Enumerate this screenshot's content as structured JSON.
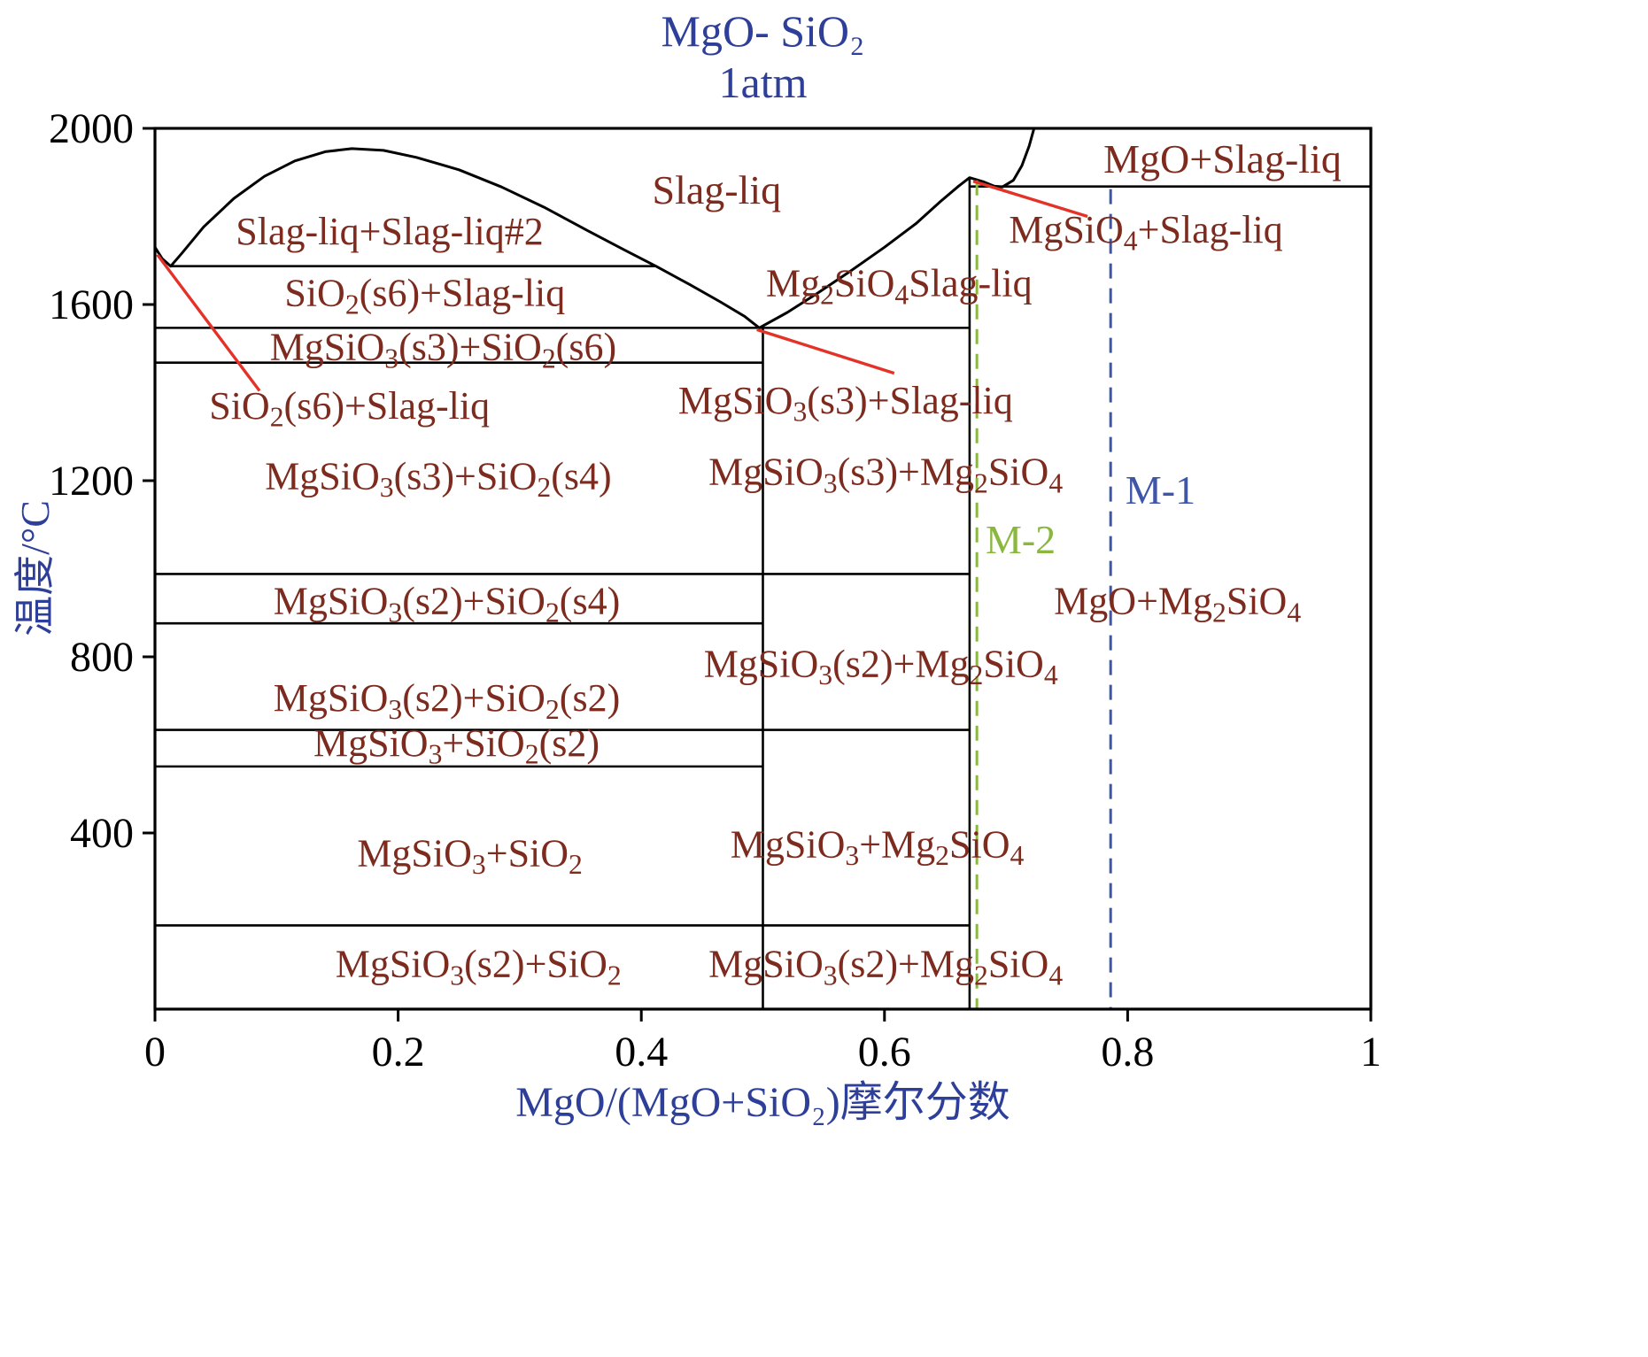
{
  "colors": {
    "background": "#ffffff",
    "frame_black": "#000000",
    "title_blue": "#2e3f99",
    "label_maroon": "#7d2b1e",
    "leader_red": "#e53228",
    "m1_blue": "#3f55a8",
    "m2_green": "#8ab83f"
  },
  "chart_data": {
    "type": "line",
    "title_line1": "MgO- SiO₂",
    "title_line2": "1atm",
    "xlabel": "MgO/(MgO+SiO₂)摩尔分数",
    "ylabel": "温度/°C",
    "xlim": [
      0,
      1
    ],
    "ylim": [
      0,
      2000
    ],
    "grid": false,
    "x_ticks": [
      0,
      0.2,
      0.4,
      0.6,
      0.8,
      1
    ],
    "x_tick_labels": [
      "0",
      "0.2",
      "0.4",
      "0.6",
      "0.8",
      "1"
    ],
    "y_ticks": [
      2000,
      1600,
      1200,
      800,
      400
    ],
    "y_tick_labels": [
      "2000",
      "1600",
      "1200",
      "800",
      "400"
    ],
    "liquidus_curves": [
      {
        "name": "liquidus-left-and-miscibility-dome",
        "points": [
          [
            0.0,
            1730
          ],
          [
            0.006,
            1704
          ],
          [
            0.013,
            1687
          ],
          [
            0.022,
            1716
          ],
          [
            0.04,
            1776
          ],
          [
            0.065,
            1841
          ],
          [
            0.09,
            1891
          ],
          [
            0.115,
            1926
          ],
          [
            0.14,
            1947
          ],
          [
            0.162,
            1954
          ],
          [
            0.188,
            1950
          ],
          [
            0.215,
            1934
          ],
          [
            0.25,
            1906
          ],
          [
            0.285,
            1867
          ],
          [
            0.32,
            1821
          ],
          [
            0.355,
            1769
          ],
          [
            0.386,
            1724
          ],
          [
            0.412,
            1687
          ],
          [
            0.44,
            1645
          ],
          [
            0.465,
            1606
          ],
          [
            0.485,
            1573
          ],
          [
            0.497,
            1547
          ]
        ]
      },
      {
        "name": "liquidus-right",
        "points": [
          [
            0.497,
            1547
          ],
          [
            0.52,
            1582
          ],
          [
            0.545,
            1626
          ],
          [
            0.572,
            1676
          ],
          [
            0.6,
            1730
          ],
          [
            0.626,
            1784
          ],
          [
            0.646,
            1834
          ],
          [
            0.661,
            1869
          ],
          [
            0.67,
            1888
          ],
          [
            0.681,
            1879
          ],
          [
            0.69,
            1869
          ],
          [
            0.697,
            1867
          ],
          [
            0.706,
            1882
          ],
          [
            0.713,
            1915
          ],
          [
            0.719,
            1960
          ],
          [
            0.723,
            2000
          ]
        ]
      }
    ],
    "horizontal_boundaries": [
      {
        "T": 1687,
        "x1": 0.013,
        "x2": 0.412
      },
      {
        "T": 1547,
        "x1": 0.0,
        "x2": 0.67
      },
      {
        "T": 1468,
        "x1": 0.0,
        "x2": 0.5
      },
      {
        "T": 988,
        "x1": 0.0,
        "x2": 0.67
      },
      {
        "T": 876,
        "x1": 0.0,
        "x2": 0.5
      },
      {
        "T": 634,
        "x1": 0.0,
        "x2": 0.67
      },
      {
        "T": 551,
        "x1": 0.0,
        "x2": 0.5
      },
      {
        "T": 190,
        "x1": 0.0,
        "x2": 0.67
      },
      {
        "T": 1868,
        "x1": 0.67,
        "x2": 1.0
      }
    ],
    "vertical_boundaries": [
      {
        "x": 0.5,
        "T1": 1547,
        "T2": 0
      },
      {
        "x": 0.67,
        "T1": 1888,
        "T2": 0
      }
    ],
    "dashed_markers": [
      {
        "label": "M-2",
        "x": 0.676,
        "T1": 1882,
        "T2": 0,
        "color_key": "m2_green"
      },
      {
        "label": "M-1",
        "x": 0.786,
        "T1": 1862,
        "T2": 0,
        "color_key": "m1_blue"
      }
    ],
    "leader_lines": [
      {
        "x1": 0.002,
        "T1": 1713,
        "x2": 0.086,
        "T2": 1404
      },
      {
        "x1": 0.495,
        "T1": 1543,
        "x2": 0.608,
        "T2": 1444
      },
      {
        "x1": 0.673,
        "T1": 1880,
        "x2": 0.767,
        "T2": 1800
      }
    ],
    "region_labels": [
      {
        "text": "Slag-liq",
        "x": 0.462,
        "T": 1862,
        "color": "maroon",
        "size": 46
      },
      {
        "text": "MgO+Slag-liq",
        "x": 0.878,
        "T": 1932,
        "color": "maroon",
        "size": 46
      },
      {
        "text": "Slag-liq+Slag-liq#2",
        "x": 0.193,
        "T": 1768,
        "color": "maroon",
        "size": 44
      },
      {
        "text": "SiO₂(s6)+Slag-liq",
        "x": 0.222,
        "T": 1628,
        "color": "maroon",
        "size": 44
      },
      {
        "text": "Mg₂SiO₄Slag-liq",
        "x": 0.612,
        "T": 1650,
        "color": "maroon",
        "size": 44
      },
      {
        "text": "MgSiO₄+Slag-liq",
        "x": 0.815,
        "T": 1772,
        "color": "maroon",
        "size": 44
      },
      {
        "text": "MgSiO₃(s3)+SiO₂(s6)",
        "x": 0.237,
        "T": 1505,
        "color": "maroon",
        "size": 44
      },
      {
        "text": "SiO₂(s6)+Slag-liq",
        "x": 0.16,
        "T": 1372,
        "color": "maroon",
        "size": 44
      },
      {
        "text": "MgSiO₃(s3)+Slag-liq",
        "x": 0.568,
        "T": 1384,
        "color": "maroon",
        "size": 44
      },
      {
        "text": "MgSiO₃(s3)+SiO₂(s4)",
        "x": 0.233,
        "T": 1212,
        "color": "maroon",
        "size": 44
      },
      {
        "text": "MgSiO₃(s3)+Mg₂SiO₄",
        "x": 0.601,
        "T": 1222,
        "color": "maroon",
        "size": 44
      },
      {
        "text": "M-1",
        "x": 0.827,
        "T": 1180,
        "color": "blue",
        "size": 46
      },
      {
        "text": "M-2",
        "x": 0.712,
        "T": 1068,
        "color": "green",
        "size": 46
      },
      {
        "text": "MgSiO₃(s2)+SiO₂(s4)",
        "x": 0.24,
        "T": 928,
        "color": "maroon",
        "size": 44
      },
      {
        "text": "MgO+Mg₂SiO₄",
        "x": 0.841,
        "T": 928,
        "color": "maroon",
        "size": 44
      },
      {
        "text": "MgSiO₃(s2)+Mg₂SiO₄",
        "x": 0.597,
        "T": 786,
        "color": "maroon",
        "size": 44
      },
      {
        "text": "MgSiO₃(s2)+SiO₂(s2)",
        "x": 0.24,
        "T": 708,
        "color": "maroon",
        "size": 44
      },
      {
        "text": "MgSiO₃+SiO₂(s2)",
        "x": 0.248,
        "T": 606,
        "color": "maroon",
        "size": 44
      },
      {
        "text": "MgSiO₃+SiO₂",
        "x": 0.259,
        "T": 356,
        "color": "maroon",
        "size": 44
      },
      {
        "text": "MgSiO₃+Mg₂SiO₄",
        "x": 0.594,
        "T": 376,
        "color": "maroon",
        "size": 44
      },
      {
        "text": "MgSiO₃(s2)+SiO₂",
        "x": 0.266,
        "T": 104,
        "color": "maroon",
        "size": 44
      },
      {
        "text": "MgSiO₃(s2)+Mg₂SiO₄",
        "x": 0.601,
        "T": 104,
        "color": "maroon",
        "size": 44
      }
    ]
  }
}
